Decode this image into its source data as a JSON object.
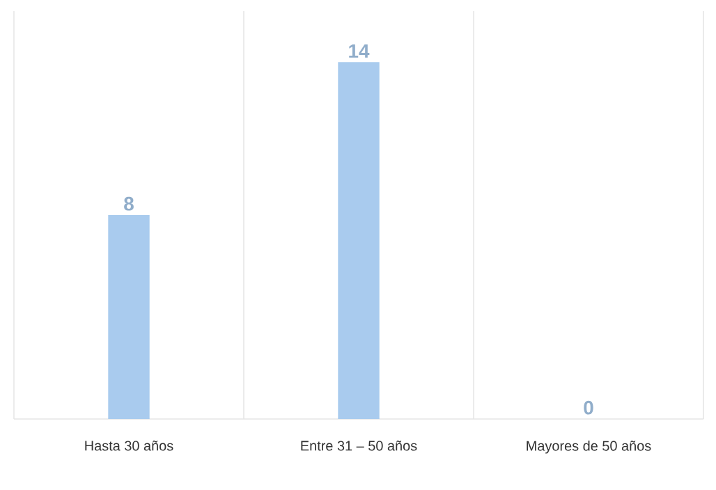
{
  "chart_data": {
    "type": "bar",
    "categories": [
      "Hasta 30 años",
      "Entre 31 – 50 años",
      "Mayores de 50 años"
    ],
    "values": [
      8,
      14,
      0
    ],
    "color": "#a9cbee",
    "ylim": [
      0,
      16
    ],
    "data_labels": true,
    "grid": "x"
  }
}
